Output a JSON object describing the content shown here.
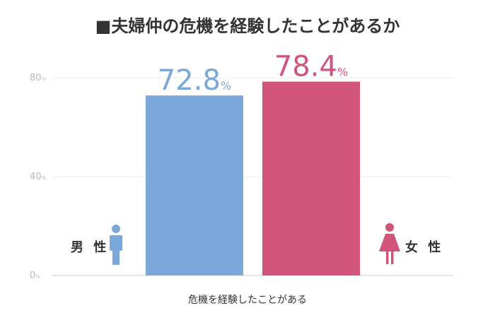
{
  "title": "■夫婦仲の危機を経験したことがあるか",
  "chart_data": {
    "type": "bar",
    "title": "■夫婦仲の危機を経験したことがあるか",
    "categories": [
      "危機を経験したことがある"
    ],
    "series": [
      {
        "name": "男性",
        "values": [
          72.8
        ],
        "color": "#7ba7db",
        "icon": "male-person-icon"
      },
      {
        "name": "女性",
        "values": [
          78.4
        ],
        "color": "#d1547a",
        "icon": "female-person-icon"
      }
    ],
    "unit": "%",
    "yticks": [
      0,
      40,
      80
    ],
    "ylim": [
      0,
      80
    ],
    "grid": true,
    "xlabel": "危機を経験したことがある",
    "ylabel": ""
  },
  "legend": {
    "male_label": "男 性",
    "female_label": "女 性"
  }
}
